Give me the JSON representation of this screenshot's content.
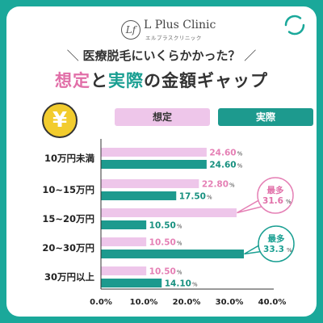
{
  "header": {
    "logo_mark": "Lf",
    "logo_name": "L Plus Clinic",
    "logo_sub": "エルプラスクリニック",
    "subtitle": "医療脱毛にいくらかかった？",
    "title_part1": "想定",
    "title_part2": "と",
    "title_part3": "実際",
    "title_part4": "の金額ギャップ",
    "yen_symbol": "¥"
  },
  "legend": {
    "estimated": "想定",
    "actual": "実際"
  },
  "colors": {
    "estimated": "#eec6ea",
    "actual": "#1d9a8e",
    "estimated_text": "#e580b5",
    "actual_text": "#17907f"
  },
  "callouts": {
    "estimated": {
      "line1": "最多",
      "line2": "31.6"
    },
    "actual": {
      "line1": "最多",
      "line2": "33.3"
    },
    "unit": "%"
  },
  "chart_data": {
    "type": "bar",
    "orientation": "horizontal",
    "categories": [
      "10万円未満",
      "10~15万円",
      "15~20万円",
      "20~30万円",
      "30万円以上"
    ],
    "series": [
      {
        "name": "想定",
        "values": [
          24.6,
          22.8,
          31.6,
          10.5,
          10.5
        ],
        "labels": [
          "24.60",
          "22.80",
          "",
          "10.50",
          "10.50"
        ]
      },
      {
        "name": "実際",
        "values": [
          24.6,
          17.5,
          10.5,
          33.3,
          14.1
        ],
        "labels": [
          "24.60",
          "17.50",
          "10.50",
          "",
          "14.10"
        ]
      }
    ],
    "unit": "%",
    "xlim": [
      0,
      40
    ],
    "xticks": [
      "0.0%",
      "10.0%",
      "20.0%",
      "30.0%",
      "40.0%"
    ],
    "grid": false
  }
}
